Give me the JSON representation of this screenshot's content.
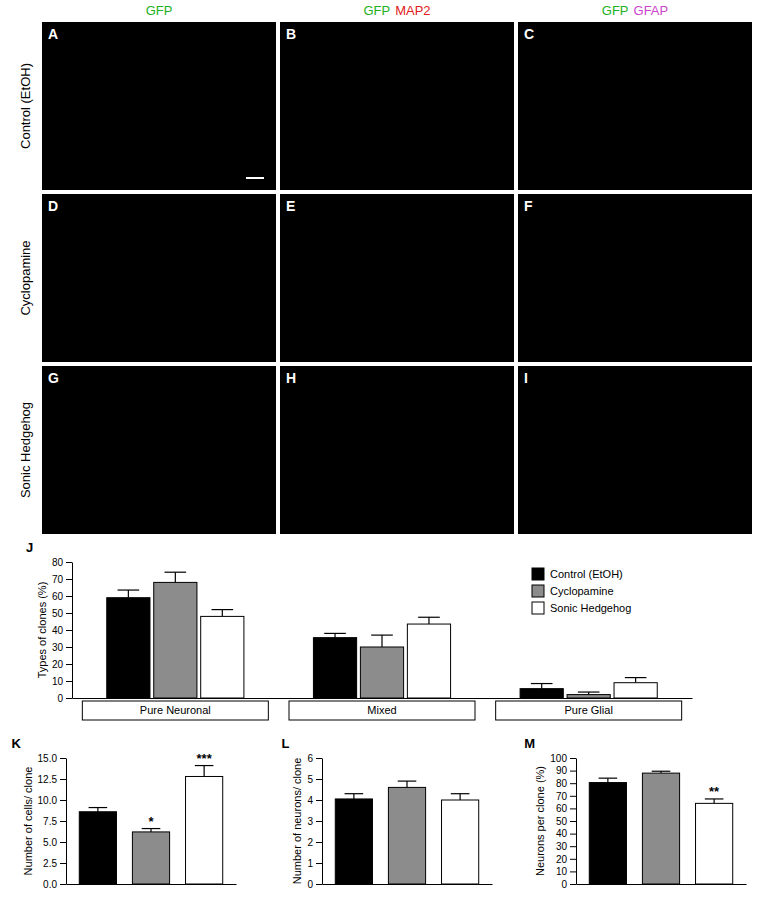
{
  "figure": {
    "column_headers": [
      [
        "GFP"
      ],
      [
        "GFP",
        "MAP2"
      ],
      [
        "GFP",
        "GFAP"
      ]
    ],
    "row_labels": [
      "Control (EtOH)",
      "Cyclopamine",
      "Sonic Hedgehog"
    ],
    "panel_letters": [
      [
        "A",
        "B",
        "C"
      ],
      [
        "D",
        "E",
        "F"
      ],
      [
        "G",
        "H",
        "I"
      ]
    ]
  },
  "chart_data": [
    {
      "type": "bar",
      "panel_label": "J",
      "y_label": "Types of clones (%)",
      "categories": [
        "Pure Neuronal",
        "Mixed",
        "Pure Glial"
      ],
      "series": [
        {
          "name": "Control (EtOH)",
          "color": "#000000",
          "values": [
            59,
            35.5,
            5.5
          ],
          "errors": [
            4.5,
            2.5,
            3
          ]
        },
        {
          "name": "Cyclopamine",
          "color": "#8c8c8c",
          "values": [
            68,
            30,
            2
          ],
          "errors": [
            6,
            7,
            1.5
          ]
        },
        {
          "name": "Sonic Hedgehog",
          "color": "#ffffff",
          "values": [
            48,
            43.5,
            9
          ],
          "errors": [
            4,
            4,
            3
          ]
        }
      ],
      "ylim": [
        0,
        80
      ],
      "yticks": [
        0,
        10,
        20,
        30,
        40,
        50,
        60,
        70,
        80
      ],
      "legend": "upper right"
    },
    {
      "type": "bar",
      "panel_label": "K",
      "y_label": "Number of cells/ clone",
      "categories": [
        null,
        null,
        null
      ],
      "values": [
        8.6,
        6.2,
        12.8
      ],
      "errors": [
        0.5,
        0.4,
        1.3
      ],
      "colors": [
        "#000000",
        "#8c8c8c",
        "#ffffff"
      ],
      "annotations": [
        null,
        "*",
        "***"
      ],
      "ylim": [
        0,
        15
      ],
      "yticks": [
        {
          "value": 0,
          "label": "0.0"
        },
        {
          "value": 2.5,
          "label": "2.5"
        },
        {
          "value": 5,
          "label": "5.0"
        },
        {
          "value": 7.5,
          "label": "7.5"
        },
        {
          "value": 10,
          "label": "10.0"
        },
        {
          "value": 12.5,
          "label": "12.5"
        },
        {
          "value": 15,
          "label": "15.0"
        }
      ],
      "tick_labels": "y"
    },
    {
      "type": "bar",
      "panel_label": "L",
      "y_label": "Number of neurons/ clone",
      "categories": [
        null,
        null,
        null
      ],
      "values": [
        4.05,
        4.6,
        4.0
      ],
      "errors": [
        0.25,
        0.3,
        0.3
      ],
      "colors": [
        "#000000",
        "#8c8c8c",
        "#ffffff"
      ],
      "ylim": [
        0,
        6
      ],
      "yticks": [
        0,
        1,
        2,
        3,
        4,
        5,
        6
      ],
      "tick_labels": "y"
    },
    {
      "type": "bar",
      "panel_label": "M",
      "y_label": "Neurons per clone (%)",
      "categories": [
        null,
        null,
        null
      ],
      "values": [
        80.5,
        88,
        64
      ],
      "errors": [
        3.5,
        1.5,
        3.5
      ],
      "colors": [
        "#000000",
        "#8c8c8c",
        "#ffffff"
      ],
      "annotations": [
        null,
        null,
        "**"
      ],
      "ylim": [
        0,
        100
      ],
      "yticks": [
        0,
        10,
        20,
        30,
        40,
        50,
        60,
        70,
        80,
        90,
        100
      ],
      "tick_labels": "y"
    }
  ]
}
